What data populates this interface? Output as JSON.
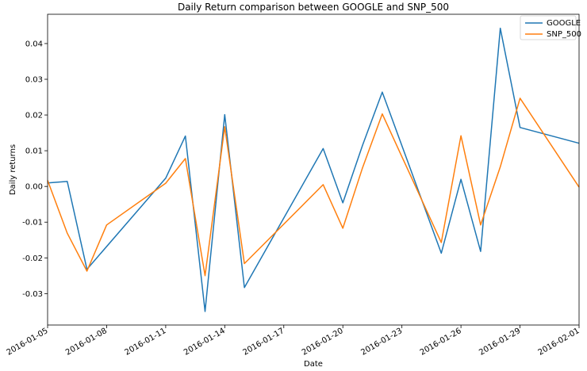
{
  "chart_data": {
    "type": "line",
    "title": "Daily Return comparison between GOOGLE and SNP_500",
    "xlabel": "Date",
    "ylabel": "Daily returns",
    "x_ticks": [
      "2016-01-05",
      "2016-01-08",
      "2016-01-11",
      "2016-01-14",
      "2016-01-17",
      "2016-01-20",
      "2016-01-23",
      "2016-01-26",
      "2016-01-29",
      "2016-02-01"
    ],
    "y_ticks": [
      "-0.03",
      "-0.02",
      "-0.01",
      "0.00",
      "0.01",
      "0.02",
      "0.03",
      "0.04"
    ],
    "xlim": [
      "2016-01-05",
      "2016-02-01"
    ],
    "ylim": [
      -0.0388,
      0.0482
    ],
    "legend_position": "top-right",
    "grid": false,
    "series": [
      {
        "name": "GOOGLE",
        "color": "#1f77b4",
        "x": [
          "2016-01-05",
          "2016-01-06",
          "2016-01-07",
          "2016-01-11",
          "2016-01-12",
          "2016-01-13",
          "2016-01-14",
          "2016-01-15",
          "2016-01-19",
          "2016-01-20",
          "2016-01-21",
          "2016-01-22",
          "2016-01-25",
          "2016-01-26",
          "2016-01-27",
          "2016-01-28",
          "2016-01-29",
          "2016-02-01"
        ],
        "values": [
          0.001,
          0.0014,
          -0.0232,
          0.0023,
          0.0141,
          -0.035,
          0.0201,
          -0.0283,
          0.0106,
          -0.0046,
          0.0115,
          0.0264,
          -0.0187,
          0.002,
          -0.0182,
          0.0443,
          0.0165,
          0.0121
        ]
      },
      {
        "name": "SNP_500",
        "color": "#ff7f0e",
        "x": [
          "2016-01-05",
          "2016-01-06",
          "2016-01-07",
          "2016-01-08",
          "2016-01-11",
          "2016-01-12",
          "2016-01-13",
          "2016-01-14",
          "2016-01-15",
          "2016-01-19",
          "2016-01-20",
          "2016-01-21",
          "2016-01-22",
          "2016-01-25",
          "2016-01-26",
          "2016-01-27",
          "2016-01-28",
          "2016-01-29",
          "2016-02-01"
        ],
        "values": [
          0.0017,
          -0.0131,
          -0.0237,
          -0.0108,
          0.0009,
          0.0078,
          -0.025,
          0.0167,
          -0.0216,
          0.0005,
          -0.0117,
          0.0052,
          0.0203,
          -0.0157,
          0.0142,
          -0.0108,
          0.0055,
          0.0247,
          -0.0002
        ]
      }
    ]
  }
}
